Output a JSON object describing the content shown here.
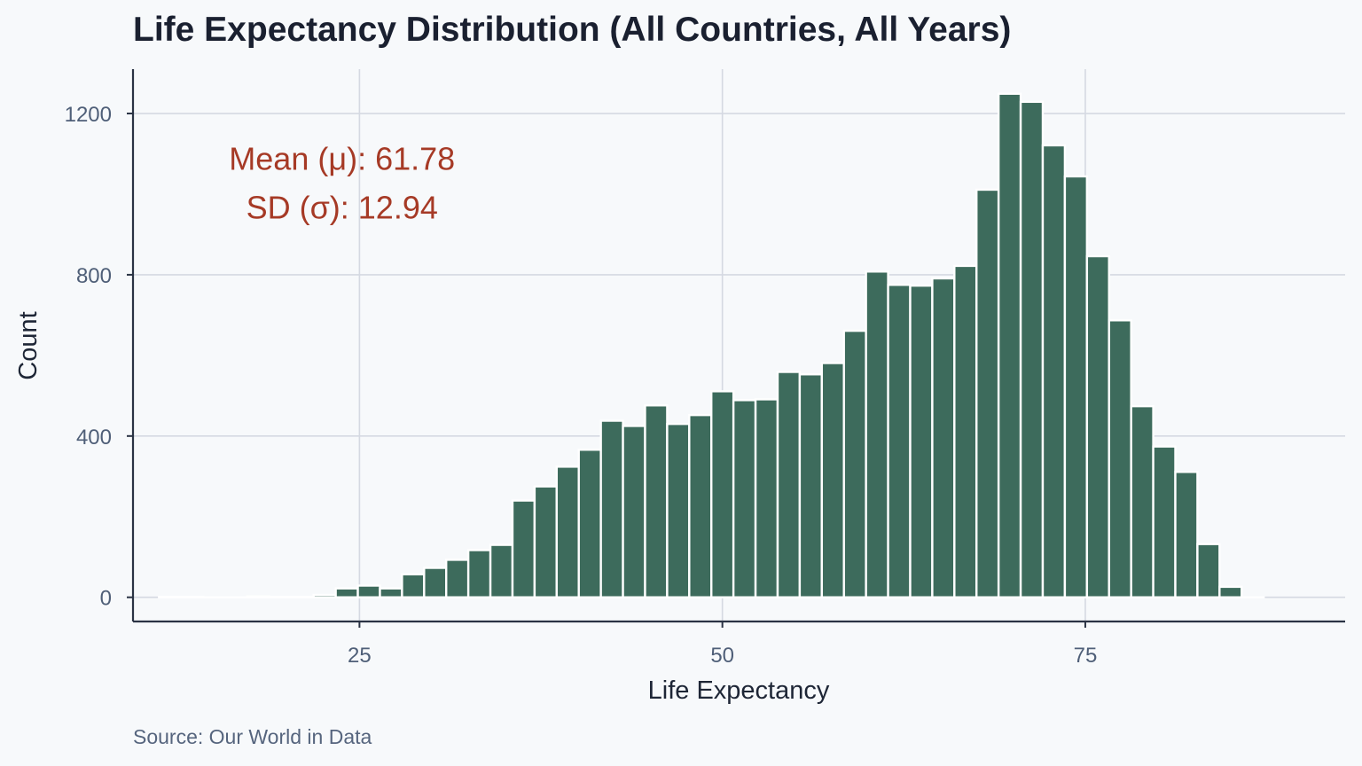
{
  "chart_data": {
    "type": "bar",
    "subtype": "histogram",
    "title": "Life Expectancy Distribution (All Countries, All Years)",
    "xlabel": "Life Expectancy",
    "ylabel": "Count",
    "caption": "Source: Our World in Data",
    "xlim": [
      9.4,
      92.9
    ],
    "ylim": [
      -60,
      1310
    ],
    "x_ticks": [
      25,
      50,
      75
    ],
    "x_tick_labels": [
      "25",
      "50",
      "75"
    ],
    "y_ticks": [
      0,
      400,
      800,
      1200
    ],
    "y_tick_labels": [
      "0",
      "400",
      "800",
      "1200"
    ],
    "grid": true,
    "bin_start": 11.19,
    "bin_width": 1.522,
    "counts": [
      1,
      1,
      0,
      0,
      2,
      1,
      1,
      6,
      22,
      29,
      22,
      57,
      73,
      93,
      117,
      130,
      240,
      275,
      324,
      366,
      438,
      425,
      476,
      430,
      452,
      511,
      489,
      491,
      559,
      553,
      581,
      661,
      808,
      775,
      773,
      791,
      822,
      1011,
      1249,
      1229,
      1121,
      1044,
      846,
      687,
      474,
      374,
      311,
      132,
      26,
      0
    ],
    "annotations": [
      {
        "text": "Mean (μ): 61.78",
        "x": 23.8,
        "y": 1060
      },
      {
        "text": "SD (σ): 12.94",
        "x": 23.8,
        "y": 940
      }
    ],
    "bar_color": "#3d6b5c",
    "bar_edge_color": "#ffffff",
    "annotation_color": "#a63a26"
  }
}
